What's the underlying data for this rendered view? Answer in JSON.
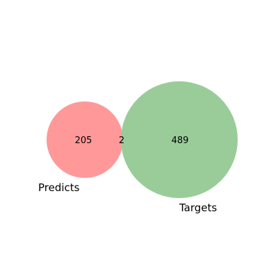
{
  "diagram": {
    "type": "venn2",
    "sets": [
      {
        "label": "Predicts",
        "only_count": "205",
        "color": "#ff9999"
      },
      {
        "label": "Targets",
        "only_count": "489",
        "color": "#99cc99"
      }
    ],
    "intersection": {
      "count": "2",
      "color": "#d4b88a"
    }
  }
}
